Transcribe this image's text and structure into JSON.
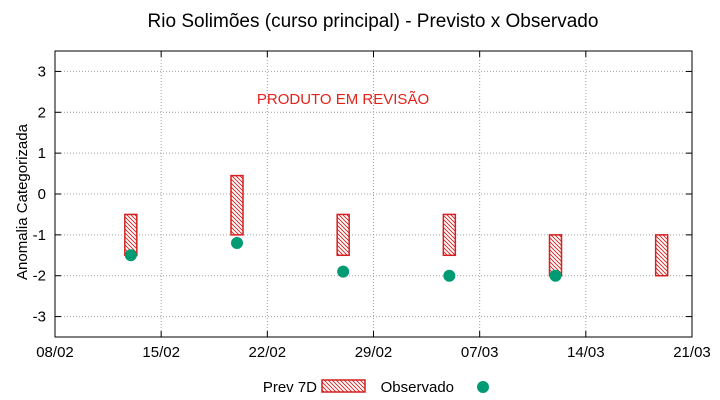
{
  "chart_data": {
    "type": "scatter",
    "title": "Rio Solimões (curso principal) - Previsto x Observado",
    "xlabel": "",
    "ylabel": "Anomalia Categorizada",
    "annotation": "PRODUTO EM REVISÃO",
    "x_ticks": [
      "08/02",
      "15/02",
      "22/02",
      "29/02",
      "07/03",
      "14/03",
      "21/03"
    ],
    "y_ticks": [
      "3",
      "2",
      "1",
      "0",
      "-1",
      "-2",
      "-3"
    ],
    "y_tick_values": [
      3,
      2,
      1,
      0,
      -1,
      -2,
      -3
    ],
    "xlim_days": [
      0,
      42
    ],
    "ylim": [
      -3.5,
      3.5
    ],
    "grid": true,
    "legend_position": "bottom",
    "series": [
      {
        "name": "Prev 7D",
        "kind": "range",
        "color": "#d42020",
        "points": [
          {
            "date": "13/02",
            "low": -1.5,
            "high": -0.5
          },
          {
            "date": "20/02",
            "low": -1.0,
            "high": 0.45
          },
          {
            "date": "27/02",
            "low": -1.5,
            "high": -0.5
          },
          {
            "date": "05/03",
            "low": -1.5,
            "high": -0.5
          },
          {
            "date": "12/03",
            "low": -2.0,
            "high": -1.0
          },
          {
            "date": "19/03",
            "low": -2.0,
            "high": -1.0
          }
        ]
      },
      {
        "name": "Observado",
        "kind": "point",
        "color": "#009a73",
        "points": [
          {
            "date": "13/02",
            "y": -1.5
          },
          {
            "date": "20/02",
            "y": -1.2
          },
          {
            "date": "27/02",
            "y": -1.9
          },
          {
            "date": "05/03",
            "y": -2.0
          },
          {
            "date": "12/03",
            "y": -2.0
          }
        ]
      }
    ]
  }
}
